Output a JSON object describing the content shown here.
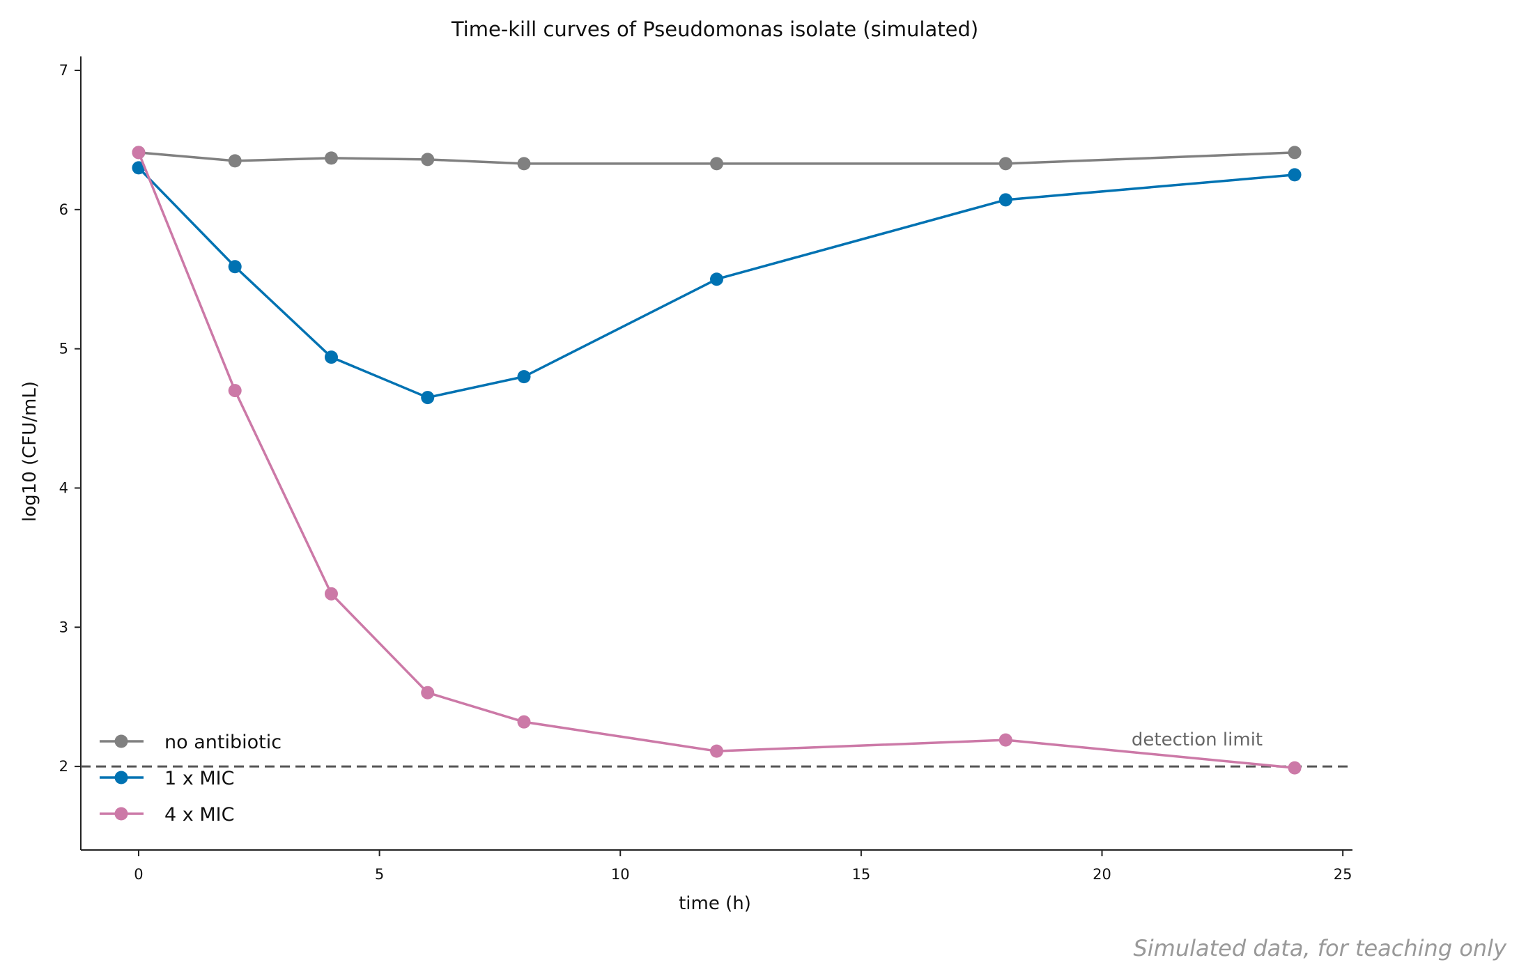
{
  "chart_data": {
    "type": "line",
    "title": "Time-kill curves of Pseudomonas isolate (simulated)",
    "xlabel": "time (h)",
    "ylabel": "log10 (CFU/mL)",
    "xlim": [
      -1.2,
      25.2
    ],
    "ylim": [
      1.4,
      7.1
    ],
    "xticks": [
      0,
      5,
      10,
      15,
      20,
      25
    ],
    "yticks": [
      2,
      3,
      4,
      5,
      6,
      7
    ],
    "grid": false,
    "legend_position": "lower-left",
    "x": [
      0,
      2,
      4,
      6,
      8,
      12,
      18,
      24
    ],
    "series": [
      {
        "name": "no antibiotic",
        "color": "#808080",
        "values": [
          6.41,
          6.35,
          6.37,
          6.36,
          6.33,
          6.33,
          6.33,
          6.41
        ]
      },
      {
        "name": "1 x MIC",
        "color": "#0072b2",
        "values": [
          6.3,
          5.59,
          4.94,
          4.65,
          4.8,
          5.5,
          6.07,
          6.25
        ]
      },
      {
        "name": "4 x MIC",
        "color": "#cc79a7",
        "values": [
          6.41,
          4.7,
          3.24,
          2.53,
          2.32,
          2.11,
          2.19,
          1.99
        ]
      }
    ],
    "reference_line": {
      "y": 2,
      "color": "#555555",
      "label": "detection limit"
    }
  },
  "footer": "Simulated data, for teaching only"
}
